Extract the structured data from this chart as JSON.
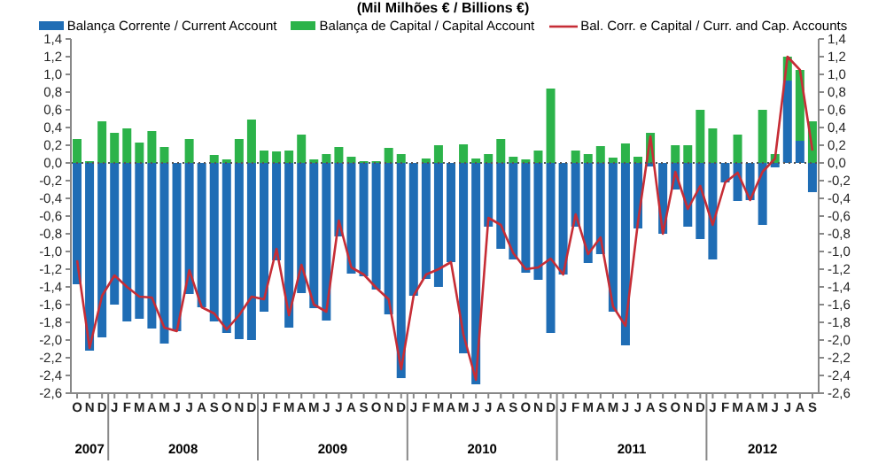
{
  "chart_data": {
    "type": "bar",
    "title": "(Mil Milhões € / Billions €)",
    "stacked": true,
    "legend": "top",
    "marker": "none",
    "categories": [
      "O",
      "N",
      "D",
      "J",
      "F",
      "M",
      "A",
      "M",
      "J",
      "J",
      "A",
      "S",
      "O",
      "N",
      "D",
      "J",
      "F",
      "M",
      "A",
      "M",
      "J",
      "J",
      "A",
      "S",
      "O",
      "N",
      "D",
      "J",
      "F",
      "M",
      "A",
      "M",
      "J",
      "J",
      "A",
      "S",
      "O",
      "N",
      "D",
      "J",
      "F",
      "M",
      "A",
      "M",
      "J",
      "J",
      "A",
      "S",
      "O",
      "N",
      "D",
      "J",
      "F",
      "M",
      "A",
      "M",
      "J",
      "J",
      "A",
      "S"
    ],
    "annotations": [
      "2007",
      "2008",
      "2009",
      "2010",
      "2011",
      "2012"
    ],
    "ylim": [
      -2.6,
      1.4
    ],
    "yticks": [
      {
        "value": -2.6,
        "label": "-2,6"
      },
      {
        "value": -2.4,
        "label": "-2,4"
      },
      {
        "value": -2.2,
        "label": "-2,2"
      },
      {
        "value": -2,
        "label": "-2,0"
      },
      {
        "value": -1.8,
        "label": "-1,8"
      },
      {
        "value": -1.6,
        "label": "-1,6"
      },
      {
        "value": -1.4,
        "label": "-1,4"
      },
      {
        "value": -1.2,
        "label": "-1,2"
      },
      {
        "value": -1,
        "label": "-1,0"
      },
      {
        "value": -0.8,
        "label": "-0,8"
      },
      {
        "value": -0.6,
        "label": "-0,6"
      },
      {
        "value": -0.4,
        "label": "-0,4"
      },
      {
        "value": -0.2,
        "label": "-0,2"
      },
      {
        "value": 0,
        "label": "0,0"
      },
      {
        "value": 0.2,
        "label": "0,2"
      },
      {
        "value": 0.4,
        "label": "0,4"
      },
      {
        "value": 0.6,
        "label": "0,6"
      },
      {
        "value": 0.8,
        "label": "0,8"
      },
      {
        "value": 1,
        "label": "1,0"
      },
      {
        "value": 1.2,
        "label": "1,2"
      },
      {
        "value": 1.4,
        "label": "1,4"
      }
    ],
    "y2lim": [
      -2.6,
      1.4
    ],
    "y2ticks": [
      {
        "value": -2.6,
        "label": "-2,6"
      },
      {
        "value": -2.4,
        "label": "-2,4"
      },
      {
        "value": -2.2,
        "label": "-2,2"
      },
      {
        "value": -2,
        "label": "-2,0"
      },
      {
        "value": -1.8,
        "label": "-1,8"
      },
      {
        "value": -1.6,
        "label": "-1,6"
      },
      {
        "value": -1.4,
        "label": "-1,4"
      },
      {
        "value": -1.2,
        "label": "-1,2"
      },
      {
        "value": -1,
        "label": "-1,0"
      },
      {
        "value": -0.8,
        "label": "-0,8"
      },
      {
        "value": -0.6,
        "label": "-0,6"
      },
      {
        "value": -0.4,
        "label": "-0,4"
      },
      {
        "value": -0.2,
        "label": "-0,2"
      },
      {
        "value": 0,
        "label": "0,0"
      },
      {
        "value": 0.2,
        "label": "0,2"
      },
      {
        "value": 0.4,
        "label": "0,4"
      },
      {
        "value": 0.6,
        "label": "0,6"
      },
      {
        "value": 0.8,
        "label": "0,8"
      },
      {
        "value": 1,
        "label": "1,0"
      },
      {
        "value": 1.2,
        "label": "1,2"
      },
      {
        "value": 1.4,
        "label": "1,4"
      }
    ],
    "ref_lines": [
      {
        "axis": "y",
        "value": 0,
        "color": "#555555",
        "line_style": "dotted"
      }
    ],
    "series": [
      {
        "name": "Balança Corrente / Current Account",
        "color": "#1f6db5",
        "values": [
          -1.37,
          -2.12,
          -1.97,
          -1.6,
          -1.79,
          -1.76,
          -1.87,
          -2.04,
          -1.9,
          -1.48,
          -1.63,
          -1.79,
          -1.92,
          -1.99,
          -2.0,
          -1.68,
          -1.1,
          -1.86,
          -1.47,
          -1.64,
          -1.78,
          -0.83,
          -1.25,
          -1.28,
          -1.43,
          -1.71,
          -2.43,
          -1.5,
          -1.31,
          -1.4,
          -1.12,
          -2.15,
          -2.5,
          -0.72,
          -0.97,
          -1.09,
          -1.24,
          -1.32,
          -1.92,
          -1.26,
          -0.72,
          -1.13,
          -1.03,
          -1.68,
          -2.06,
          -0.74,
          -0.04,
          -0.8,
          -0.3,
          -0.72,
          -0.86,
          -1.09,
          -0.22,
          -0.43,
          -0.42,
          -0.7,
          -0.05,
          0.93,
          0.25,
          -0.33
        ]
      },
      {
        "name": "Balança de Capital / Capital Account",
        "color": "#2cb34a",
        "values": [
          0.27,
          0.02,
          0.47,
          0.34,
          0.39,
          0.23,
          0.36,
          0.18,
          0.0,
          0.27,
          0.0,
          0.09,
          0.04,
          0.27,
          0.49,
          0.14,
          0.13,
          0.14,
          0.32,
          0.04,
          0.1,
          0.18,
          0.07,
          0.02,
          0.02,
          0.17,
          0.1,
          0.0,
          0.05,
          0.2,
          0.0,
          0.21,
          0.05,
          0.1,
          0.27,
          0.07,
          0.04,
          0.14,
          0.84,
          0.0,
          0.14,
          0.1,
          0.19,
          0.06,
          0.22,
          0.07,
          0.34,
          0.0,
          0.2,
          0.2,
          0.6,
          0.39,
          0.0,
          0.32,
          0.0,
          0.6,
          0.1,
          0.27,
          0.8,
          0.47
        ]
      },
      {
        "name": "Bal. Corr. e Capital / Curr. and Cap. Accounts",
        "type": "line",
        "color": "#c62d36",
        "values": [
          -1.1,
          -2.09,
          -1.5,
          -1.27,
          -1.4,
          -1.51,
          -1.52,
          -1.86,
          -1.9,
          -1.21,
          -1.63,
          -1.7,
          -1.88,
          -1.72,
          -1.51,
          -1.54,
          -0.97,
          -1.72,
          -1.15,
          -1.6,
          -1.68,
          -0.65,
          -1.18,
          -1.26,
          -1.41,
          -1.54,
          -2.33,
          -1.5,
          -1.26,
          -1.2,
          -1.12,
          -1.94,
          -2.45,
          -0.62,
          -0.7,
          -1.02,
          -1.2,
          -1.18,
          -1.08,
          -1.26,
          -0.58,
          -1.03,
          -0.84,
          -1.62,
          -1.84,
          -0.67,
          0.3,
          -0.8,
          -0.1,
          -0.52,
          -0.26,
          -0.7,
          -0.22,
          -0.11,
          -0.42,
          -0.1,
          0.05,
          1.2,
          1.05,
          0.14
        ]
      }
    ]
  }
}
